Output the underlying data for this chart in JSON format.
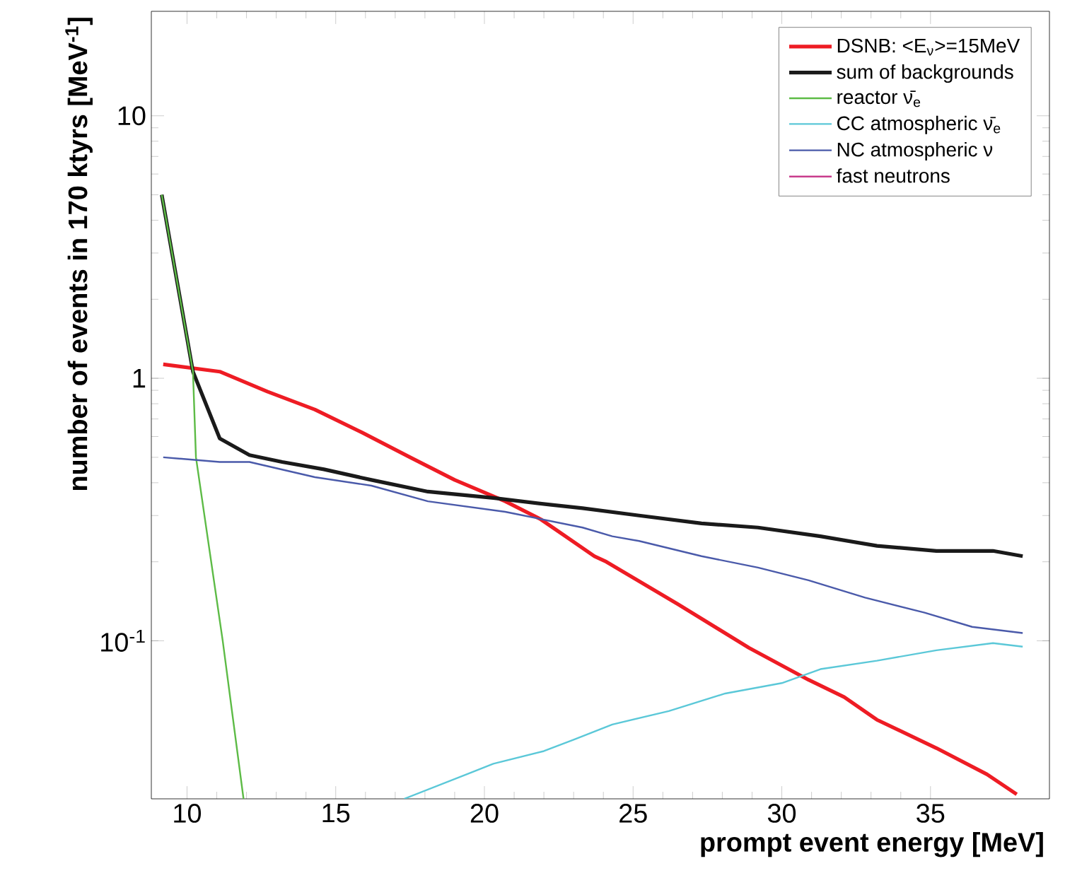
{
  "chart_data": {
    "type": "line",
    "xlabel": "prompt event energy [MeV]",
    "ylabel": "number of events in 170 ktyrs [MeV$^{-1}$]",
    "log": "y",
    "xlim": [
      8.8,
      39
    ],
    "ylim": [
      0.025,
      25
    ],
    "xticks": [
      10,
      15,
      20,
      25,
      30,
      35
    ],
    "yticks": [
      {
        "value": 0.1,
        "label": "10$^{-1}$"
      },
      1,
      10
    ],
    "legend": "top right",
    "grid": false,
    "marker": "none",
    "line_style": "solid",
    "series": [
      {
        "name": "DSNB: <E$_{ν}$>=15MeV",
        "color": "#ee1c24",
        "x": [
          9.2,
          11.1,
          12.7,
          14.3,
          15.9,
          17.5,
          19.0,
          20.7,
          21.9,
          23.7,
          24.1,
          26.5,
          28.9,
          30.9,
          32.1,
          33.2,
          35.2,
          36.9,
          37.9
        ],
        "values": [
          1.13,
          1.06,
          0.89,
          0.76,
          0.62,
          0.5,
          0.41,
          0.34,
          0.29,
          0.21,
          0.2,
          0.138,
          0.094,
          0.071,
          0.061,
          0.05,
          0.039,
          0.031,
          0.026
        ]
      },
      {
        "name": "sum of backgrounds",
        "color": "#1a1a1a",
        "x": [
          9.15,
          10.2,
          11.1,
          12.1,
          13.2,
          14.6,
          16.2,
          18.1,
          20.3,
          22.2,
          23.3,
          25.2,
          27.3,
          29.2,
          31.3,
          33.2,
          35.2,
          37.1,
          38.1
        ],
        "values": [
          5.0,
          1.06,
          0.59,
          0.51,
          0.48,
          0.45,
          0.41,
          0.37,
          0.35,
          0.33,
          0.32,
          0.3,
          0.28,
          0.27,
          0.25,
          0.23,
          0.22,
          0.22,
          0.21
        ]
      },
      {
        "name": "reactor ν̄$_{e}$",
        "color": "#5dbb46",
        "x": [
          9.15,
          10.2,
          10.3,
          11.2,
          11.9
        ],
        "values": [
          5.0,
          1.06,
          0.5,
          0.1,
          0.025
        ]
      },
      {
        "name": "CC atmospheric ν̄$_{e}$",
        "color": "#5bc8d8",
        "x": [
          17.3,
          19.4,
          20.3,
          22.0,
          23.0,
          24.3,
          26.2,
          28.1,
          30.0,
          31.3,
          33.2,
          35.2,
          37.1,
          38.1
        ],
        "values": [
          0.025,
          0.031,
          0.034,
          0.038,
          0.042,
          0.048,
          0.054,
          0.063,
          0.069,
          0.078,
          0.084,
          0.092,
          0.098,
          0.095
        ]
      },
      {
        "name": "NC atmospheric ν",
        "color": "#4a5aaa",
        "x": [
          9.2,
          11.1,
          12.1,
          14.3,
          16.2,
          18.1,
          20.7,
          23.3,
          24.3,
          25.2,
          27.3,
          29.2,
          30.9,
          32.8,
          34.8,
          36.4,
          38.1
        ],
        "values": [
          0.5,
          0.48,
          0.48,
          0.42,
          0.39,
          0.34,
          0.31,
          0.27,
          0.25,
          0.24,
          0.21,
          0.19,
          0.17,
          0.146,
          0.128,
          0.113,
          0.107
        ]
      },
      {
        "name": "fast neutrons",
        "color": "#c83c8c"
      }
    ]
  }
}
